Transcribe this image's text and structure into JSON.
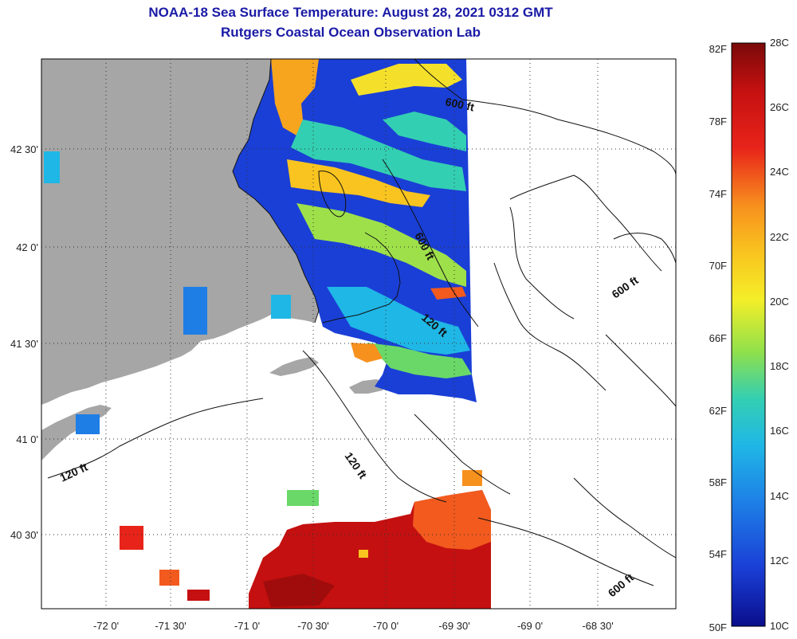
{
  "title": "NOAA-18 Sea Surface Temperature:  August 28, 2021 0312 GMT",
  "subtitle": "Rutgers Coastal Ocean Observation Lab",
  "map": {
    "lat_labels": [
      "42 30'",
      "42 0'",
      "41 30'",
      "41 0'",
      "40 30'"
    ],
    "lon_labels": [
      "-72 0'",
      "-71 30'",
      "-71 0'",
      "-70 30'",
      "-70 0'",
      "-69 30'",
      "-69 0'",
      "-68 30'"
    ],
    "contour_labels": [
      "600 ft",
      "600 ft",
      "600 ft",
      "600 ft",
      "120 ft",
      "120 ft",
      "120 ft"
    ],
    "land_color": "#a6a6a6",
    "no_data_color": "#ffffff"
  },
  "colorbar": {
    "fahrenheit_labels": [
      "82F",
      "78F",
      "74F",
      "70F",
      "66F",
      "62F",
      "58F",
      "54F",
      "50F"
    ],
    "celsius_labels": [
      "28C",
      "26C",
      "24C",
      "22C",
      "20C",
      "18C",
      "16C",
      "14C",
      "12C",
      "10C"
    ],
    "colors": [
      "#7a0a0a",
      "#c41010",
      "#e8241a",
      "#f25a1e",
      "#f7911e",
      "#f9c41f",
      "#f4ee28",
      "#b7e63c",
      "#6ad868",
      "#33cfb2",
      "#1fb7e6",
      "#1e7ee6",
      "#1a3fd6",
      "#0a0e8c"
    ]
  }
}
